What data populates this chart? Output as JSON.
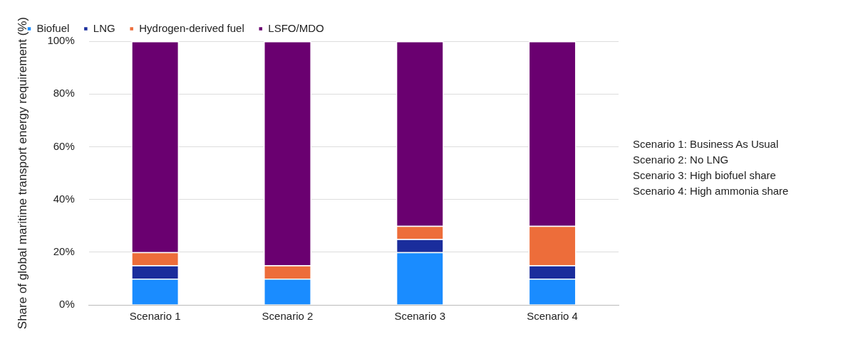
{
  "chart_data": {
    "type": "bar",
    "stacked": true,
    "categories": [
      "Scenario 1",
      "Scenario 2",
      "Scenario 3",
      "Scenario 4"
    ],
    "ylabel": "Share of global maritime transport energy requirement (%)",
    "series": [
      {
        "name": "Biofuel",
        "color": "#1a8cff",
        "values": [
          10,
          10,
          20,
          10
        ]
      },
      {
        "name": "LNG",
        "color": "#1a2d9c",
        "values": [
          5,
          0,
          5,
          5
        ]
      },
      {
        "name": "Hydrogen-derived fuel",
        "color": "#ed6d3a",
        "values": [
          5,
          5,
          5,
          15
        ]
      },
      {
        "name": "LSFO/MDO",
        "color": "#6a0070",
        "values": [
          80,
          85,
          70,
          70
        ]
      }
    ],
    "ylim": [
      0,
      100
    ],
    "yticks": [
      {
        "value": 0,
        "label": "0%"
      },
      {
        "value": 20,
        "label": "20%"
      },
      {
        "value": 40,
        "label": "40%"
      },
      {
        "value": 60,
        "label": "60%"
      },
      {
        "value": 80,
        "label": "80%"
      },
      {
        "value": 100,
        "label": "100%"
      }
    ],
    "grid": "y",
    "legend": "top left",
    "annotations": [
      "Scenario 1: Business As Usual",
      "Scenario 2: No LNG",
      "Scenario 3: High biofuel share",
      "Scenario 4: High ammonia share"
    ]
  }
}
